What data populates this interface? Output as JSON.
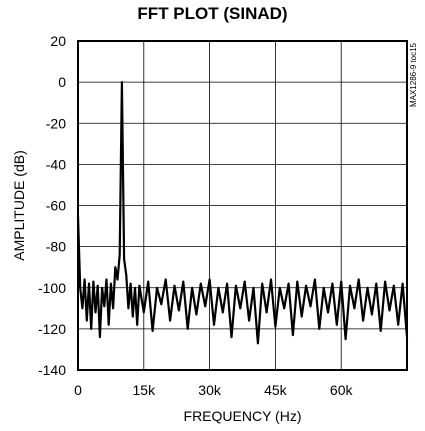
{
  "chart_data": {
    "type": "line",
    "title": "FFT PLOT (SINAD)",
    "xlabel": "FREQUENCY (Hz)",
    "ylabel": "AMPLITUDE (dB)",
    "side_code": "MAX1286-9 toc15",
    "xlim": [
      0,
      75000
    ],
    "ylim": [
      -140,
      20
    ],
    "x_ticks": [
      {
        "value": 0,
        "label": "0"
      },
      {
        "value": 15000,
        "label": "15k"
      },
      {
        "value": 30000,
        "label": "30k"
      },
      {
        "value": 45000,
        "label": "45k"
      },
      {
        "value": 60000,
        "label": "60k"
      }
    ],
    "y_ticks": [
      {
        "value": 20,
        "label": "20"
      },
      {
        "value": 0,
        "label": "0"
      },
      {
        "value": -20,
        "label": "-20"
      },
      {
        "value": -40,
        "label": "-40"
      },
      {
        "value": -60,
        "label": "-60"
      },
      {
        "value": -80,
        "label": "-80"
      },
      {
        "value": -100,
        "label": "-100"
      },
      {
        "value": -120,
        "label": "-120"
      },
      {
        "value": -140,
        "label": "-140"
      }
    ],
    "grid": true,
    "series": [
      {
        "color": "#000000",
        "x": [
          0,
          500,
          1000,
          1500,
          2000,
          2500,
          3000,
          3500,
          4000,
          4500,
          5000,
          5500,
          6000,
          6500,
          7000,
          7500,
          8000,
          8500,
          9000,
          9500,
          10000,
          10500,
          11000,
          11500,
          12000,
          12500,
          13000,
          13500,
          14000,
          15000,
          16000,
          17000,
          18000,
          19000,
          20000,
          21000,
          22000,
          23000,
          24000,
          25000,
          26000,
          27000,
          28000,
          29000,
          30000,
          31000,
          32000,
          33000,
          34000,
          35000,
          36000,
          37000,
          38000,
          39000,
          40000,
          41000,
          42000,
          43000,
          44000,
          45000,
          46000,
          47000,
          48000,
          49000,
          50000,
          51000,
          52000,
          53000,
          54000,
          55000,
          56000,
          57000,
          58000,
          59000,
          60000,
          61000,
          62000,
          63000,
          64000,
          65000,
          66000,
          67000,
          68000,
          69000,
          70000,
          71000,
          72000,
          73000,
          74000,
          75000
        ],
        "y": [
          -65,
          -100,
          -110,
          -96,
          -116,
          -98,
          -120,
          -97,
          -112,
          -99,
          -124,
          -100,
          -109,
          -96,
          -118,
          -98,
          -110,
          -90,
          -96,
          -84,
          0,
          -86,
          -94,
          -110,
          -98,
          -114,
          -100,
          -118,
          -99,
          -112,
          -97,
          -121,
          -100,
          -108,
          -96,
          -116,
          -99,
          -111,
          -97,
          -120,
          -100,
          -113,
          -98,
          -109,
          -96,
          -118,
          -100,
          -112,
          -98,
          -124,
          -99,
          -110,
          -97,
          -116,
          -100,
          -127,
          -98,
          -112,
          -96,
          -119,
          -100,
          -110,
          -98,
          -123,
          -97,
          -114,
          -99,
          -109,
          -96,
          -120,
          -100,
          -112,
          -98,
          -118,
          -97,
          -125,
          -99,
          -110,
          -96,
          -116,
          -100,
          -113,
          -98,
          -121,
          -97,
          -111,
          -99,
          -118,
          -98,
          -124
        ]
      }
    ]
  }
}
